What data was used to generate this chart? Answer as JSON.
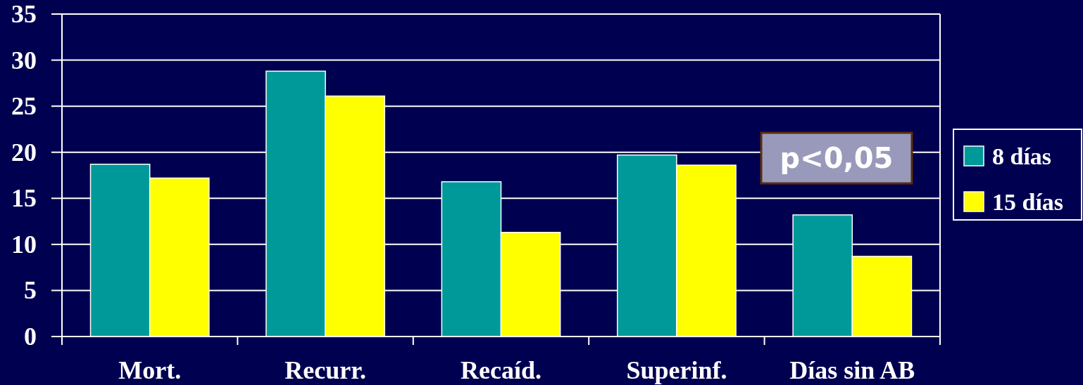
{
  "chart_data": {
    "type": "bar",
    "categories": [
      "Mort.",
      "Recurr.",
      "Recaíd.",
      "Superinf.",
      "Días sin AB"
    ],
    "series": [
      {
        "name": "8 días",
        "color": "#009999",
        "values": [
          18.7,
          28.8,
          16.8,
          19.7,
          13.2
        ]
      },
      {
        "name": "15 días",
        "color": "#ffff00",
        "values": [
          17.2,
          26.1,
          11.3,
          18.6,
          8.7
        ]
      }
    ],
    "ylim": [
      0,
      35
    ],
    "yticks": [
      0,
      5,
      10,
      15,
      20,
      25,
      30,
      35
    ],
    "grid": "y",
    "legend": "right",
    "annotations": [
      "p<0,05"
    ]
  }
}
